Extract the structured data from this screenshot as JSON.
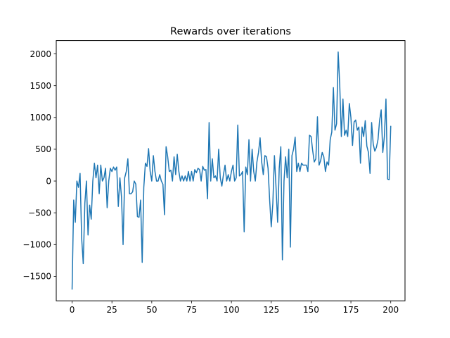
{
  "chart_data": {
    "type": "line",
    "title": "Rewards over iterations",
    "xlabel": "",
    "ylabel": "",
    "xlim": [
      -9.95,
      208.95
    ],
    "ylim": [
      -1885,
      2210
    ],
    "xticks": [
      0,
      25,
      50,
      75,
      100,
      125,
      150,
      175,
      200
    ],
    "yticks": [
      -1500,
      -1000,
      -500,
      0,
      500,
      1000,
      1500,
      2000
    ],
    "grid": false,
    "legend": "none",
    "series": [
      {
        "color": "#1f77b4",
        "y": [
          -1700,
          -300,
          -650,
          0,
          -100,
          120,
          -900,
          -1300,
          -350,
          0,
          -850,
          -380,
          -600,
          0,
          280,
          50,
          250,
          -200,
          250,
          0,
          50,
          200,
          -420,
          0,
          200,
          150,
          220,
          170,
          220,
          -400,
          50,
          -250,
          -1000,
          50,
          150,
          350,
          -200,
          -200,
          -170,
          0,
          -50,
          -560,
          -570,
          -300,
          -1280,
          -100,
          280,
          230,
          510,
          150,
          0,
          400,
          150,
          0,
          0,
          100,
          0,
          -50,
          -530,
          540,
          380,
          150,
          170,
          0,
          380,
          100,
          420,
          150,
          0,
          80,
          0,
          80,
          0,
          150,
          0,
          150,
          0,
          180,
          130,
          200,
          180,
          0,
          230,
          170,
          180,
          -280,
          920,
          0,
          350,
          50,
          80,
          0,
          500,
          50,
          -80,
          100,
          250,
          0,
          100,
          0,
          150,
          250,
          0,
          50,
          880,
          80,
          100,
          150,
          -800,
          220,
          100,
          650,
          0,
          500,
          150,
          0,
          300,
          450,
          680,
          300,
          100,
          400,
          380,
          200,
          -300,
          -720,
          -350,
          400,
          -100,
          -650,
          200,
          540,
          -1240,
          0,
          380,
          50,
          500,
          -1040,
          400,
          500,
          690,
          150,
          280,
          150,
          280,
          250,
          250,
          250,
          150,
          720,
          700,
          480,
          300,
          350,
          1010,
          250,
          320,
          450,
          380,
          150,
          300,
          250,
          650,
          770,
          1470,
          800,
          900,
          2030,
          1500,
          700,
          1290,
          720,
          800,
          700,
          1220,
          1000,
          560,
          930,
          960,
          800,
          850,
          280,
          850,
          700,
          950,
          550,
          450,
          120,
          920,
          580,
          470,
          530,
          650,
          950,
          1120,
          450,
          700,
          1290,
          30,
          20,
          860
        ]
      }
    ]
  }
}
